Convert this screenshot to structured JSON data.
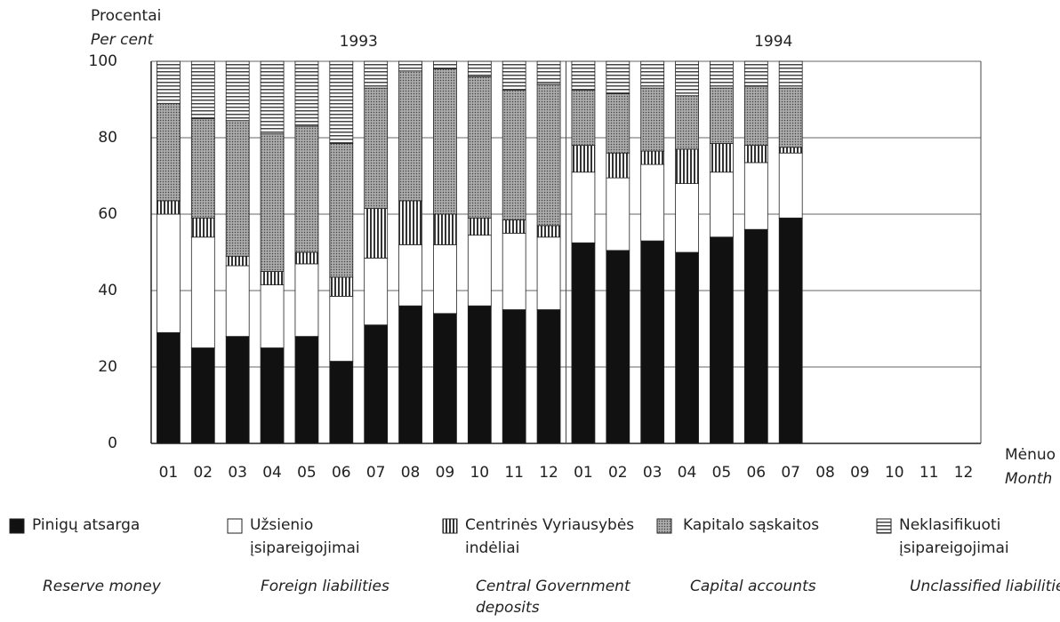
{
  "chart_data": {
    "type": "stacked_bar",
    "y_label": "Procentai",
    "y_label_en": "Per cent",
    "x_label": "Mėnuo",
    "x_label_en": "Month",
    "annotations": [
      "1993",
      "1994"
    ],
    "categories": [
      "01",
      "02",
      "03",
      "04",
      "05",
      "06",
      "07",
      "08",
      "09",
      "10",
      "11",
      "12",
      "01",
      "02",
      "03",
      "04",
      "05",
      "06",
      "07",
      "08",
      "09",
      "10",
      "11",
      "12"
    ],
    "ylim": [
      0,
      100
    ],
    "yticks": [
      0,
      20,
      40,
      60,
      80,
      100
    ],
    "grid": true,
    "series": [
      {
        "name": "Pinigų atsarga",
        "name_en": "Reserve money",
        "color": "#111111",
        "pattern": "solid",
        "values": [
          29,
          25,
          28,
          25,
          28,
          21.5,
          31,
          36,
          34,
          36,
          35,
          35,
          52.5,
          50.5,
          53,
          50,
          54,
          56,
          59,
          null,
          null,
          null,
          null,
          null
        ]
      },
      {
        "name": "Užsienio įsipareigojimai",
        "name_en": "Foreign liabilities",
        "color": "#ffffff",
        "pattern": "solid",
        "values": [
          31,
          29,
          18.5,
          16.5,
          19,
          17,
          17.5,
          16,
          18,
          18.5,
          20,
          19,
          18.5,
          19,
          20,
          18,
          17,
          17.5,
          17,
          null,
          null,
          null,
          null,
          null
        ]
      },
      {
        "name": "Centrinės Vyriausybės indėliai",
        "name_en": "Central Government deposits",
        "color": "#555555",
        "pattern": "vertical",
        "values": [
          3.5,
          5,
          2.5,
          3.5,
          3,
          5,
          13,
          11.5,
          8,
          4.5,
          3.5,
          3,
          7,
          6.5,
          3.5,
          9,
          7.5,
          4.5,
          1.5,
          null,
          null,
          null,
          null,
          null
        ]
      },
      {
        "name": "Kapitalo sąskaitos",
        "name_en": "Capital accounts",
        "color": "#8a8a8a",
        "pattern": "stipple",
        "values": [
          25.5,
          26,
          35.5,
          36,
          33,
          35,
          31.5,
          34,
          38,
          37,
          34,
          37,
          14.5,
          15.5,
          16.5,
          14,
          14.5,
          15.5,
          15.5,
          null,
          null,
          null,
          null,
          null
        ]
      },
      {
        "name": "Neklasifikuoti įsipareigojimai",
        "name_en": "Unclassified liabilities",
        "color": "#666666",
        "pattern": "horizontal",
        "values": [
          11,
          15,
          15.5,
          19,
          17,
          21.5,
          7,
          2.5,
          2,
          4,
          7.5,
          6,
          7.5,
          8.5,
          7,
          9,
          7,
          6.5,
          7,
          null,
          null,
          null,
          null,
          null
        ]
      }
    ]
  }
}
